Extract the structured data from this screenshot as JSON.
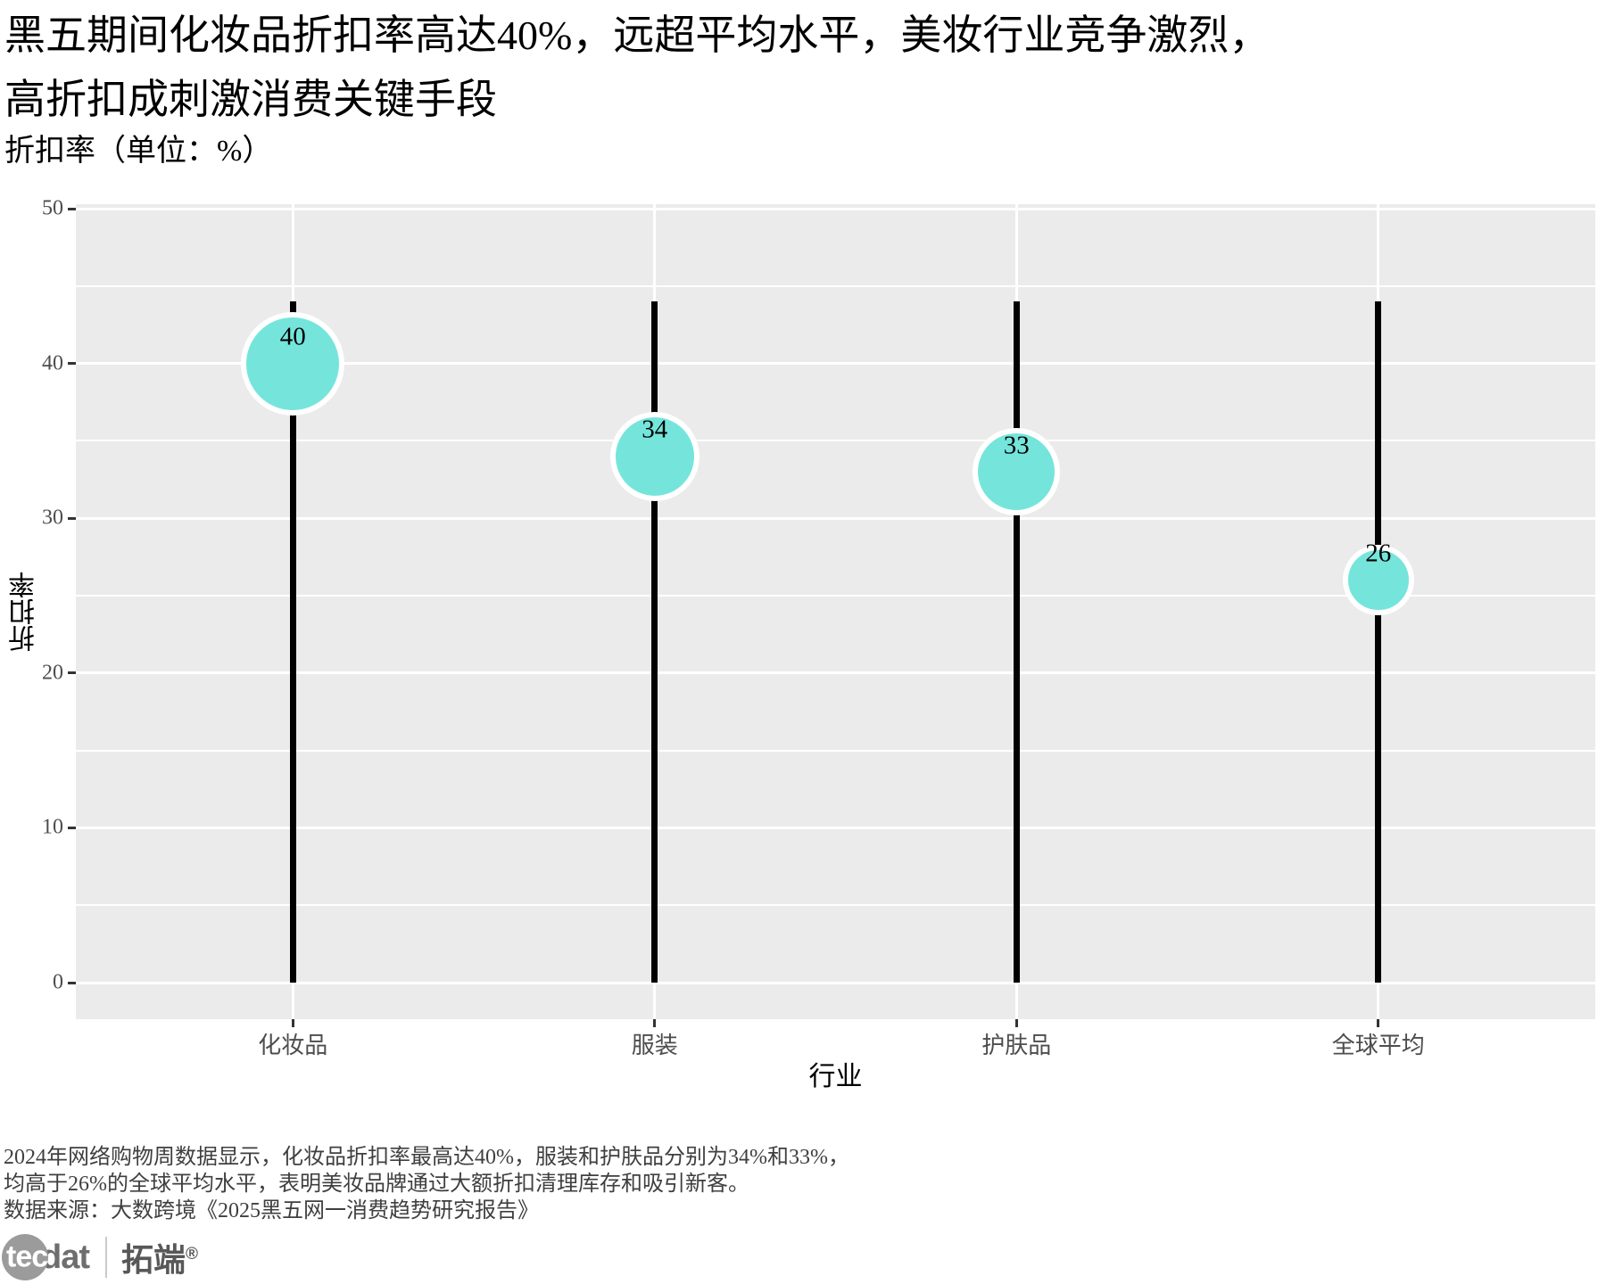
{
  "header": {
    "title_line1": "黑五期间化妆品折扣率高达40%，远超平均水平，美妆行业竞争激烈，",
    "title_line2": "高折扣成刺激消费关键手段",
    "subtitle": "折扣率（单位：%）"
  },
  "chart_data": {
    "type": "lollipop",
    "categories": [
      "化妆品",
      "服装",
      "护肤品",
      "全球平均"
    ],
    "values": [
      40,
      34,
      33,
      26
    ],
    "point_labels": [
      "40",
      "34",
      "33",
      "26"
    ],
    "stem_top_value": 44,
    "xlabel": "行业",
    "ylabel": "折扣率",
    "ylim": [
      0,
      50
    ],
    "yticks": [
      0,
      10,
      20,
      30,
      40,
      50
    ],
    "ytick_labels": [
      "0",
      "10",
      "20",
      "30",
      "40",
      "50"
    ],
    "minor_yticks": [
      5,
      15,
      25,
      35,
      45
    ],
    "grid": "white major+minor horizontal lines and vertical category lines on gray panel",
    "legend": "none",
    "colors": {
      "panel_background": "#EBEBEB",
      "gridline": "#FFFFFF",
      "stem": "#010101",
      "bubble_fill": "#75E5DC",
      "bubble_stroke": "#FFFFFF",
      "axis_text": "#4d4d4d",
      "tick_mark": "#333333",
      "label_text": "#000000"
    }
  },
  "caption": {
    "line1": "2024年网络购物周数据显示，化妆品折扣率最高达40%，服装和护肤品分别为34%和33%，",
    "line2": "均高于26%的全球平均水平，表明美妆品牌通过大额折扣清理库存和吸引新客。",
    "line3": "数据来源：大数跨境《2025黑五网一消费趋势研究报告》"
  },
  "logo": {
    "tec": "tec",
    "dat": "dat",
    "brand": "拓端",
    "registered": "®"
  }
}
